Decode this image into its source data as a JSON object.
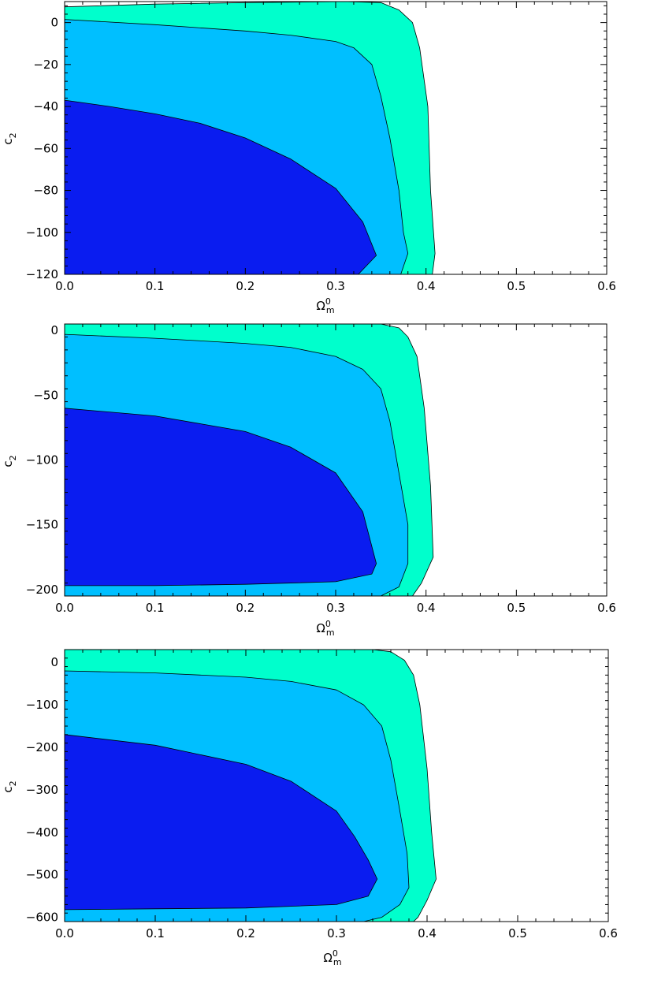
{
  "figure": {
    "colors": {
      "sigma1": "#0a1cf0",
      "sigma2": "#00bfff",
      "sigma3": "#00ffcc",
      "frame": "#000000"
    }
  },
  "chart_data": [
    {
      "type": "area",
      "name": "top-panel",
      "xlabel": "Ω",
      "xlabel_sub": "m",
      "xlabel_sup": "0",
      "ylabel": "c",
      "ylabel_sub": "2",
      "xlim": [
        0,
        0.6
      ],
      "ylim": [
        -120,
        10
      ],
      "xticks": [
        0.0,
        0.1,
        0.2,
        0.3,
        0.4,
        0.5,
        0.6
      ],
      "xtick_labels": [
        "0.0",
        "0.1",
        "0.2",
        "0.3",
        "0.4",
        "0.5",
        "0.6"
      ],
      "yticks": [
        0,
        -20,
        -40,
        -60,
        -80,
        -100,
        -120
      ],
      "ytick_labels": [
        "0",
        "−20",
        "−40",
        "−60",
        "−80",
        "−100",
        "−120"
      ],
      "regions": [
        {
          "level": "sigma3",
          "points": [
            [
              0.0,
              7.5
            ],
            [
              0.1,
              8.8
            ],
            [
              0.2,
              9.5
            ],
            [
              0.31,
              10
            ],
            [
              0.35,
              9.5
            ],
            [
              0.37,
              6
            ],
            [
              0.385,
              0
            ],
            [
              0.393,
              -12
            ],
            [
              0.402,
              -40
            ],
            [
              0.405,
              -80
            ],
            [
              0.41,
              -110
            ],
            [
              0.407,
              -120
            ],
            [
              0.0,
              -120
            ]
          ]
        },
        {
          "level": "sigma2",
          "points": [
            [
              0.0,
              1.5
            ],
            [
              0.1,
              -1
            ],
            [
              0.2,
              -4
            ],
            [
              0.25,
              -6
            ],
            [
              0.3,
              -9
            ],
            [
              0.32,
              -12
            ],
            [
              0.34,
              -20
            ],
            [
              0.35,
              -35
            ],
            [
              0.36,
              -55
            ],
            [
              0.37,
              -80
            ],
            [
              0.375,
              -100
            ],
            [
              0.38,
              -110
            ],
            [
              0.372,
              -120
            ],
            [
              0.0,
              -120
            ]
          ]
        },
        {
          "level": "sigma1",
          "points": [
            [
              0.0,
              -37
            ],
            [
              0.05,
              -40
            ],
            [
              0.1,
              -43.5
            ],
            [
              0.15,
              -48
            ],
            [
              0.2,
              -55
            ],
            [
              0.25,
              -65
            ],
            [
              0.3,
              -79
            ],
            [
              0.33,
              -95
            ],
            [
              0.345,
              -111
            ],
            [
              0.325,
              -120
            ],
            [
              0.0,
              -120
            ]
          ]
        }
      ]
    },
    {
      "type": "area",
      "name": "middle-panel",
      "xlabel": "Ω",
      "xlabel_sub": "m",
      "xlabel_sup": "0",
      "ylabel": "c",
      "ylabel_sub": "2",
      "xlim": [
        0,
        0.6
      ],
      "ylim": [
        -205,
        5
      ],
      "xticks": [
        0.0,
        0.1,
        0.2,
        0.3,
        0.4,
        0.5,
        0.6
      ],
      "xtick_labels": [
        "0.0",
        "0.1",
        "0.2",
        "0.3",
        "0.4",
        "0.5",
        "0.6"
      ],
      "yticks": [
        0,
        -50,
        -100,
        -150,
        -200
      ],
      "ytick_labels": [
        "0",
        "−50",
        "−100",
        "−150",
        "−200"
      ],
      "regions": [
        {
          "level": "sigma3",
          "points": [
            [
              0.0,
              5
            ],
            [
              0.35,
              5
            ],
            [
              0.37,
              2
            ],
            [
              0.38,
              -5
            ],
            [
              0.39,
              -20
            ],
            [
              0.398,
              -60
            ],
            [
              0.405,
              -120
            ],
            [
              0.408,
              -175
            ],
            [
              0.395,
              -195
            ],
            [
              0.385,
              -205
            ],
            [
              0.0,
              -205
            ]
          ]
        },
        {
          "level": "sigma2",
          "points": [
            [
              0.0,
              -3
            ],
            [
              0.1,
              -6
            ],
            [
              0.2,
              -10
            ],
            [
              0.25,
              -13
            ],
            [
              0.3,
              -20
            ],
            [
              0.33,
              -30
            ],
            [
              0.35,
              -45
            ],
            [
              0.36,
              -70
            ],
            [
              0.37,
              -110
            ],
            [
              0.38,
              -150
            ],
            [
              0.38,
              -180
            ],
            [
              0.37,
              -198
            ],
            [
              0.35,
              -205
            ],
            [
              0.0,
              -205
            ]
          ]
        },
        {
          "level": "sigma1",
          "points": [
            [
              0.0,
              -60
            ],
            [
              0.1,
              -66
            ],
            [
              0.2,
              -78
            ],
            [
              0.25,
              -90
            ],
            [
              0.3,
              -110
            ],
            [
              0.33,
              -140
            ],
            [
              0.345,
              -180
            ],
            [
              0.34,
              -188
            ],
            [
              0.3,
              -194
            ],
            [
              0.2,
              -196
            ],
            [
              0.1,
              -197
            ],
            [
              0.0,
              -197
            ]
          ]
        }
      ]
    },
    {
      "type": "area",
      "name": "bottom-panel",
      "xlabel": "Ω",
      "xlabel_sub": "m",
      "xlabel_sup": "0",
      "ylabel": "c",
      "ylabel_sub": "2",
      "xlim": [
        0,
        0.6
      ],
      "ylim": [
        -610,
        30
      ],
      "xticks": [
        0.0,
        0.1,
        0.2,
        0.3,
        0.4,
        0.5,
        0.6
      ],
      "xtick_labels": [
        "0.0",
        "0.1",
        "0.2",
        "0.3",
        "0.4",
        "0.5",
        "0.6"
      ],
      "yticks": [
        0,
        -100,
        -200,
        -300,
        -400,
        -500,
        -600
      ],
      "ytick_labels": [
        "0",
        "−100",
        "−200",
        "−300",
        "−400",
        "−500",
        "−600"
      ],
      "regions": [
        {
          "level": "sigma3",
          "points": [
            [
              0.0,
              30
            ],
            [
              0.34,
              30
            ],
            [
              0.36,
              25
            ],
            [
              0.375,
              5
            ],
            [
              0.385,
              -30
            ],
            [
              0.392,
              -100
            ],
            [
              0.4,
              -250
            ],
            [
              0.405,
              -400
            ],
            [
              0.41,
              -510
            ],
            [
              0.4,
              -560
            ],
            [
              0.39,
              -600
            ],
            [
              0.385,
              -610
            ],
            [
              0.0,
              -610
            ]
          ]
        },
        {
          "level": "sigma2",
          "points": [
            [
              0.0,
              -20
            ],
            [
              0.1,
              -25
            ],
            [
              0.2,
              -35
            ],
            [
              0.25,
              -45
            ],
            [
              0.3,
              -65
            ],
            [
              0.33,
              -100
            ],
            [
              0.35,
              -150
            ],
            [
              0.36,
              -230
            ],
            [
              0.37,
              -350
            ],
            [
              0.378,
              -450
            ],
            [
              0.38,
              -530
            ],
            [
              0.37,
              -570
            ],
            [
              0.35,
              -600
            ],
            [
              0.33,
              -610
            ],
            [
              0.0,
              -610
            ]
          ]
        },
        {
          "level": "sigma1",
          "points": [
            [
              0.0,
              -170
            ],
            [
              0.1,
              -195
            ],
            [
              0.2,
              -240
            ],
            [
              0.25,
              -280
            ],
            [
              0.3,
              -350
            ],
            [
              0.32,
              -410
            ],
            [
              0.335,
              -465
            ],
            [
              0.345,
              -510
            ],
            [
              0.335,
              -550
            ],
            [
              0.3,
              -570
            ],
            [
              0.2,
              -578
            ],
            [
              0.1,
              -580
            ],
            [
              0.0,
              -582
            ]
          ]
        }
      ]
    }
  ]
}
